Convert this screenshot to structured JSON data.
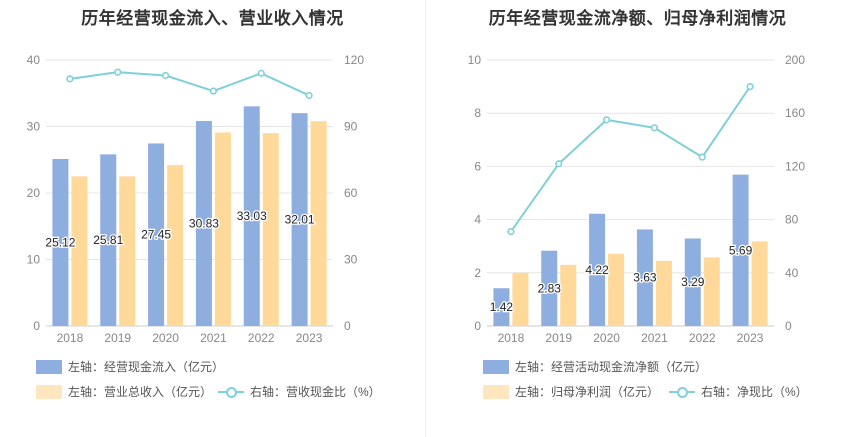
{
  "colors": {
    "bar1": "#8eaee0",
    "bar2": "#ffd99a",
    "line": "#7fd0d8",
    "grid": "#e6e6e6",
    "axis_text": "#888888"
  },
  "chart_data": [
    {
      "type": "bar",
      "title": "历年经营现金流入、营业收入情况",
      "categories": [
        "2018",
        "2019",
        "2020",
        "2021",
        "2022",
        "2023"
      ],
      "left_axis": {
        "ylim": [
          0,
          40
        ],
        "ticks": [
          "0",
          "10",
          "20",
          "30",
          "40"
        ]
      },
      "right_axis": {
        "ylim": [
          0,
          120
        ],
        "ticks": [
          "0",
          "30",
          "60",
          "90",
          "120"
        ]
      },
      "series": [
        {
          "name": "左轴：经营现金流入（亿元）",
          "axis": "left",
          "kind": "bar",
          "values": [
            25.12,
            25.81,
            27.45,
            30.83,
            33.03,
            32.01
          ],
          "labels": [
            "25.12",
            "25.81",
            "27.45",
            "30.83",
            "33.03",
            "32.01"
          ]
        },
        {
          "name": "左轴：营业总收入（亿元）",
          "axis": "left",
          "kind": "bar",
          "values": [
            22.5,
            22.5,
            24.2,
            29.1,
            29.0,
            30.8
          ]
        },
        {
          "name": "右轴：营收现金比（%）",
          "axis": "right",
          "kind": "line",
          "values": [
            111.5,
            114.5,
            113.0,
            106.0,
            114.0,
            104.0
          ]
        }
      ]
    },
    {
      "type": "bar",
      "title": "历年经营现金流净额、归母净利润情况",
      "categories": [
        "2018",
        "2019",
        "2020",
        "2021",
        "2022",
        "2023"
      ],
      "left_axis": {
        "ylim": [
          0,
          10
        ],
        "ticks": [
          "0",
          "2",
          "4",
          "6",
          "8",
          "10"
        ]
      },
      "right_axis": {
        "ylim": [
          0,
          200
        ],
        "ticks": [
          "0",
          "40",
          "80",
          "120",
          "160",
          "200"
        ]
      },
      "series": [
        {
          "name": "左轴：经营活动现金流净额（亿元）",
          "axis": "left",
          "kind": "bar",
          "values": [
            1.42,
            2.83,
            4.22,
            3.63,
            3.29,
            5.69
          ],
          "labels": [
            "1.42",
            "2.83",
            "4.22",
            "3.63",
            "3.29",
            "5.69"
          ]
        },
        {
          "name": "左轴：归母净利润（亿元）",
          "axis": "left",
          "kind": "bar",
          "values": [
            2.0,
            2.3,
            2.72,
            2.45,
            2.58,
            3.18
          ]
        },
        {
          "name": "右轴：净现比（%）",
          "axis": "right",
          "kind": "line",
          "values": [
            71,
            122,
            155,
            149,
            127,
            180
          ]
        }
      ]
    }
  ]
}
